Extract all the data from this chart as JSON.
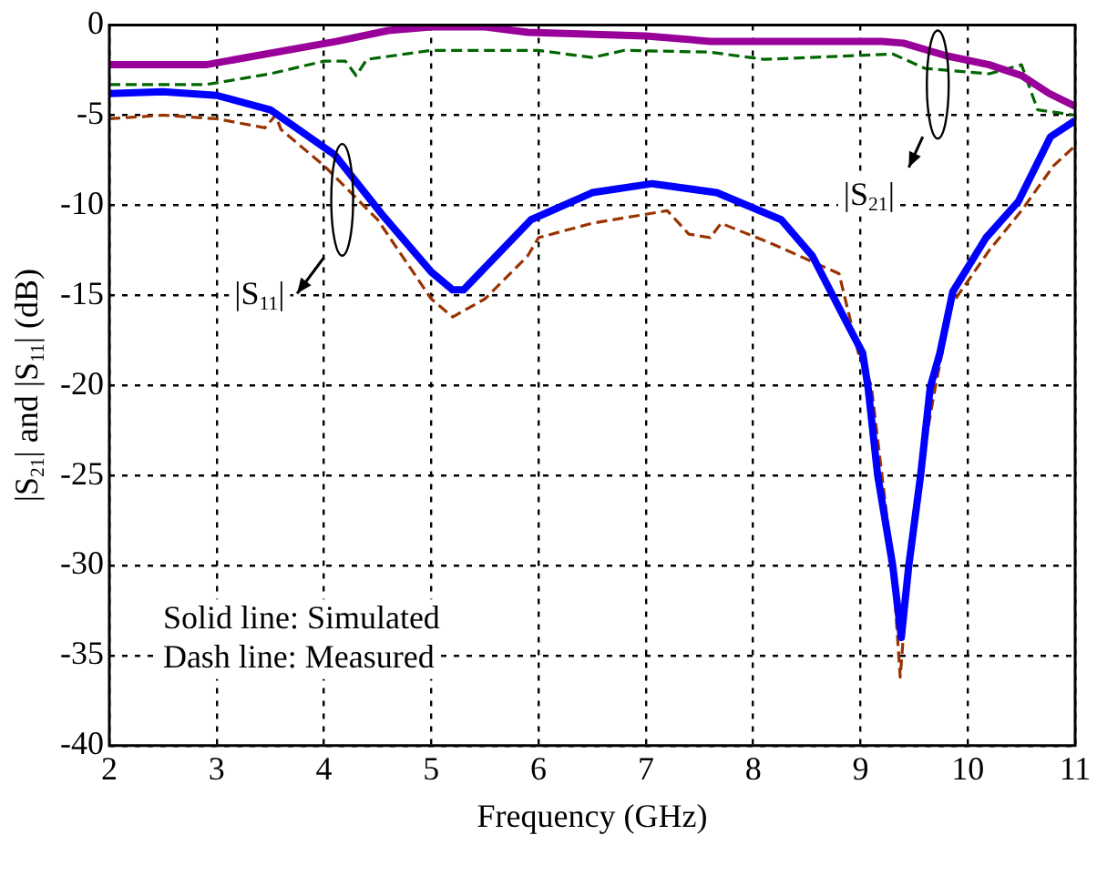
{
  "chart_data": {
    "type": "line",
    "xlabel": "Frequency (GHz)",
    "ylabel": "|S$_{21}$| and |S$_{11}$| (dB)",
    "xlim": [
      2,
      11
    ],
    "xticks": [
      2,
      3,
      4,
      5,
      6,
      7,
      8,
      9,
      10,
      11
    ],
    "ylim": [
      -40,
      0
    ],
    "yticks": [
      -40,
      -35,
      -30,
      -25,
      -20,
      -15,
      -10,
      -5,
      0
    ],
    "grid": true,
    "legend": false,
    "marker": "none",
    "annotations": [
      "|S$_{21}$|",
      "|S$_{11}$|",
      "Solid line: Simulated",
      "Dash line: Measured"
    ],
    "series": [
      {
        "color": "#990099",
        "line_style": "solid",
        "x": [
          2,
          2.9,
          4.12,
          4.6,
          5,
          5.5,
          5.9,
          7,
          7.6,
          9.2,
          9.4,
          9.8,
          10.2,
          10.5,
          10.76,
          11
        ],
        "values": [
          -2.2,
          -2.2,
          -0.9,
          -0.3,
          -0.1,
          -0.1,
          -0.4,
          -0.6,
          -0.9,
          -0.9,
          -1,
          -1.7,
          -2.2,
          -2.8,
          -3.8,
          -4.5
        ]
      },
      {
        "color": "#006600",
        "line_style": "dashed",
        "x": [
          2,
          2.9,
          3.5,
          4,
          4.2,
          4.3,
          4.4,
          5,
          5.5,
          6,
          6.5,
          6.8,
          7.6,
          8.1,
          9.3,
          9.6,
          10.2,
          10.5,
          10.65,
          11
        ],
        "values": [
          -3.3,
          -3.3,
          -2.7,
          -2,
          -2,
          -2.8,
          -1.9,
          -1.4,
          -1.4,
          -1.4,
          -1.8,
          -1.4,
          -1.5,
          -1.9,
          -1.6,
          -2.4,
          -2.7,
          -2.2,
          -4.7,
          -5
        ]
      },
      {
        "color": "#0000ff",
        "line_style": "solid",
        "x": [
          2,
          2.5,
          3,
          3.5,
          4.1,
          4.54,
          5,
          5.2,
          5.3,
          5.93,
          6.5,
          7.06,
          7.66,
          8.26,
          8.55,
          8.87,
          9.02,
          9.07,
          9.16,
          9.3,
          9.38,
          9.45,
          9.56,
          9.65,
          9.74,
          9.86,
          10.17,
          10.47,
          10.77,
          11
        ],
        "values": [
          -3.8,
          -3.7,
          -3.9,
          -4.7,
          -7.2,
          -10.5,
          -13.7,
          -14.7,
          -14.7,
          -10.8,
          -9.3,
          -8.8,
          -9.3,
          -10.8,
          -12.8,
          -16.5,
          -18.2,
          -20.1,
          -25,
          -30,
          -34,
          -30,
          -25,
          -20.1,
          -18.2,
          -14.8,
          -11.8,
          -9.8,
          -6.2,
          -5.3
        ]
      },
      {
        "color": "#993300",
        "line_style": "dashed",
        "x": [
          2,
          2.5,
          3,
          3.45,
          3.55,
          3.6,
          4,
          4.5,
          5,
          5.2,
          5.5,
          5.9,
          6,
          6.5,
          7,
          7.2,
          7.4,
          7.6,
          7.7,
          8.2,
          8.8,
          8.98,
          9.1,
          9.2,
          9.3,
          9.37,
          9.45,
          9.55,
          9.7,
          9.85,
          10.2,
          10.5,
          10.8,
          11
        ],
        "values": [
          -5.2,
          -5,
          -5.2,
          -5.7,
          -5,
          -5.8,
          -7.8,
          -10.8,
          -15.2,
          -16.2,
          -15.2,
          -12.8,
          -11.8,
          -11,
          -10.5,
          -10.3,
          -11.6,
          -11.8,
          -11,
          -12.2,
          -13.8,
          -18.2,
          -20,
          -25,
          -30,
          -36.2,
          -30,
          -25,
          -20,
          -15.5,
          -12.5,
          -10.3,
          -7.8,
          -6.7
        ]
      }
    ]
  }
}
